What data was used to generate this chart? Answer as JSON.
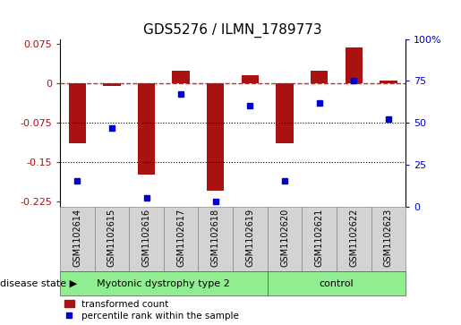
{
  "title": "GDS5276 / ILMN_1789773",
  "categories": [
    "GSM1102614",
    "GSM1102615",
    "GSM1102616",
    "GSM1102617",
    "GSM1102618",
    "GSM1102619",
    "GSM1102620",
    "GSM1102621",
    "GSM1102622",
    "GSM1102623"
  ],
  "bar_values": [
    -0.115,
    -0.005,
    -0.175,
    0.025,
    -0.205,
    0.015,
    -0.115,
    0.025,
    0.068,
    0.005
  ],
  "dot_values_pct": [
    15,
    47,
    5,
    67,
    3,
    60,
    15,
    62,
    75,
    52
  ],
  "bar_color": "#AA1111",
  "dot_color": "#0000CC",
  "ylim_left": [
    -0.235,
    0.085
  ],
  "ylim_right": [
    0,
    100
  ],
  "yticks_left": [
    0.075,
    0.0,
    -0.075,
    -0.15,
    -0.225
  ],
  "yticks_left_labels": [
    "0.075",
    "0",
    "-0.075",
    "-0.15",
    "-0.225"
  ],
  "yticks_right": [
    100,
    75,
    50,
    25,
    0
  ],
  "yticks_right_labels": [
    "100%",
    "75",
    "50",
    "25",
    "0"
  ],
  "hline_y": 0,
  "dotted_hlines": [
    -0.075,
    -0.15
  ],
  "disease_groups": [
    {
      "label": "Myotonic dystrophy type 2",
      "start": 0,
      "end": 5,
      "color": "#90EE90"
    },
    {
      "label": "control",
      "start": 6,
      "end": 9,
      "color": "#90EE90"
    }
  ],
  "disease_state_label": "disease state",
  "legend_bar_label": "transformed count",
  "legend_dot_label": "percentile rank within the sample",
  "bar_width": 0.5,
  "figsize": [
    5.15,
    3.63
  ],
  "dpi": 100,
  "cell_bg": "#D3D3D3",
  "cell_edge": "#888888"
}
